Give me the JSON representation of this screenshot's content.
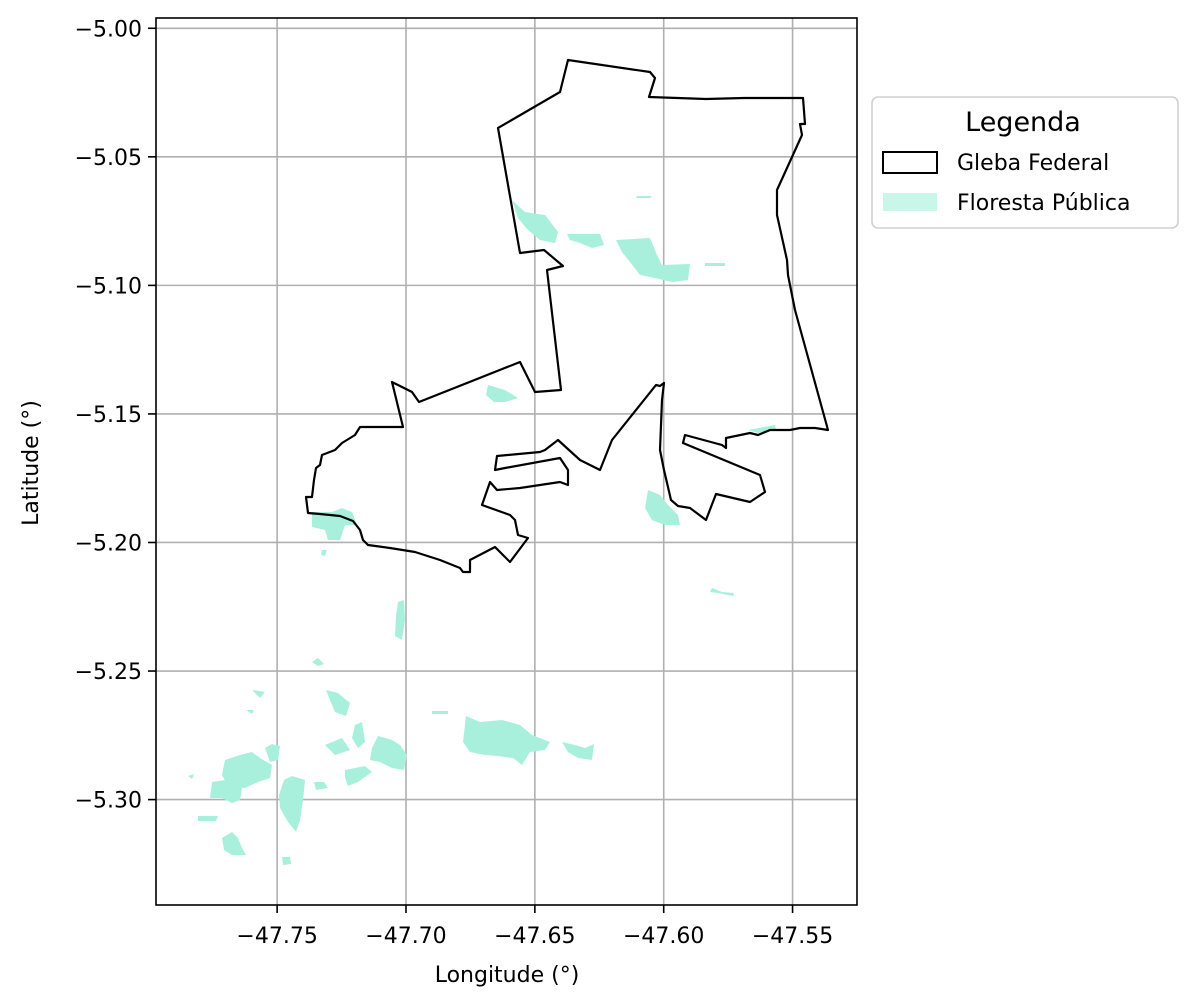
{
  "map": {
    "xlabel": "Longitude (°)",
    "ylabel": "Latitude (°)",
    "xlim": [
      -47.797,
      -47.525
    ],
    "ylim": [
      -5.341,
      -4.996
    ],
    "x_ticks": [
      -47.75,
      -47.7,
      -47.65,
      -47.6,
      -47.55
    ],
    "x_tick_labels": [
      "−47.75",
      "−47.70",
      "−47.65",
      "−47.60",
      "−47.55"
    ],
    "y_ticks": [
      -5.0,
      -5.05,
      -5.1,
      -5.15,
      -5.2,
      -5.25,
      -5.3
    ],
    "y_tick_labels": [
      "−5.00",
      "−5.05",
      "−5.10",
      "−5.15",
      "−5.20",
      "−5.25",
      "−5.30"
    ],
    "grid": true,
    "legend": {
      "title": "Legenda",
      "placement": "outside right, top",
      "items": [
        {
          "label": "Gleba Federal",
          "kind": "outline",
          "color": "#000000"
        },
        {
          "label": "Floresta Pública",
          "kind": "fill",
          "color": "#a8f0dc"
        }
      ]
    },
    "colors": {
      "gleba_edge": "#000000",
      "floresta_fill": "#a8f0dc",
      "grid": "#b0b0b0"
    }
  }
}
